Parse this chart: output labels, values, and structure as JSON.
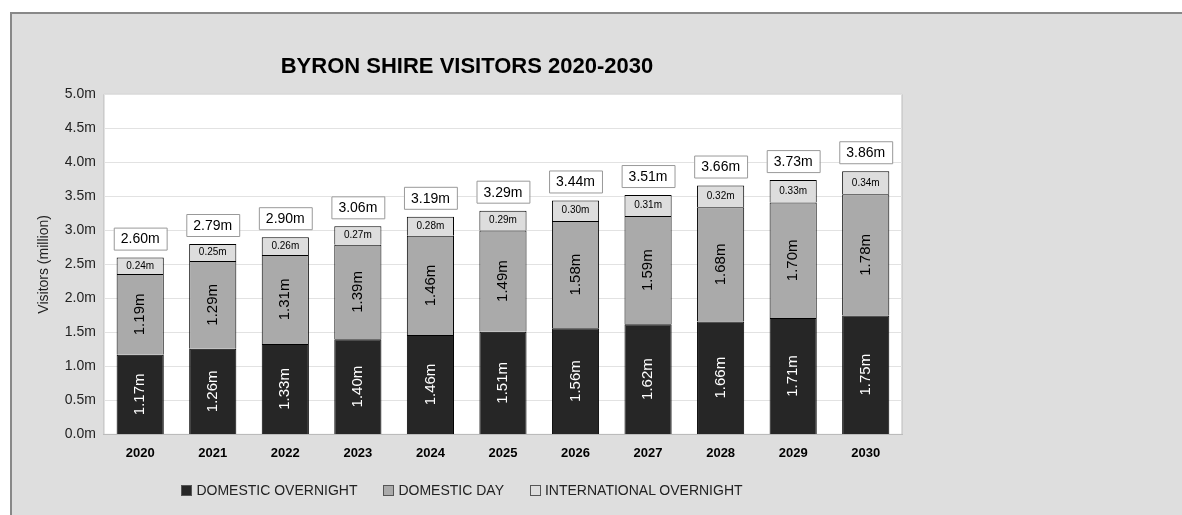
{
  "chart_data": {
    "type": "bar",
    "title": "BYRON SHIRE VISITORS 2020-2030",
    "ylabel": "Visitors (million)",
    "categories": [
      "2020",
      "2021",
      "2022",
      "2023",
      "2024",
      "2025",
      "2026",
      "2027",
      "2028",
      "2029",
      "2030"
    ],
    "stacked": true,
    "ylim": [
      0,
      5
    ],
    "yticks": [
      {
        "value": 0,
        "label": "0.0m"
      },
      {
        "value": 0.5,
        "label": "0.5m"
      },
      {
        "value": 1,
        "label": "1.0m"
      },
      {
        "value": 1.5,
        "label": "1.5m"
      },
      {
        "value": 2,
        "label": "2.0m"
      },
      {
        "value": 2.5,
        "label": "2.5m"
      },
      {
        "value": 3,
        "label": "3.0m"
      },
      {
        "value": 3.5,
        "label": "3.5m"
      },
      {
        "value": 4,
        "label": "4.0m"
      },
      {
        "value": 4.5,
        "label": "4.5m"
      },
      {
        "value": 5,
        "label": "5.0m"
      }
    ],
    "grid": "y",
    "legend": "bottom",
    "series": [
      {
        "name": "DOMESTIC OVERNIGHT",
        "color": "#262626",
        "values": [
          1.17,
          1.26,
          1.33,
          1.4,
          1.46,
          1.51,
          1.56,
          1.62,
          1.66,
          1.71,
          1.75
        ],
        "value_labels": [
          "1.17m",
          "1.26m",
          "1.33m",
          "1.40m",
          "1.46m",
          "1.51m",
          "1.56m",
          "1.62m",
          "1.66m",
          "1.71m",
          "1.75m"
        ]
      },
      {
        "name": "DOMESTIC DAY",
        "color": "#aaaaaa",
        "values": [
          1.19,
          1.29,
          1.31,
          1.39,
          1.46,
          1.49,
          1.58,
          1.59,
          1.68,
          1.7,
          1.78
        ],
        "value_labels": [
          "1.19m",
          "1.29m",
          "1.31m",
          "1.39m",
          "1.46m",
          "1.49m",
          "1.58m",
          "1.59m",
          "1.68m",
          "1.70m",
          "1.78m"
        ]
      },
      {
        "name": "INTERNATIONAL OVERNIGHT",
        "color": "#dddddd",
        "values": [
          0.24,
          0.25,
          0.26,
          0.27,
          0.28,
          0.29,
          0.3,
          0.31,
          0.32,
          0.33,
          0.34
        ],
        "value_labels": [
          "0.24m",
          "0.25m",
          "0.26m",
          "0.27m",
          "0.28m",
          "0.29m",
          "0.30m",
          "0.31m",
          "0.32m",
          "0.33m",
          "0.34m"
        ]
      }
    ],
    "totals": [
      "2.60m",
      "2.79m",
      "2.90m",
      "3.06m",
      "3.19m",
      "3.29m",
      "3.44m",
      "3.51m",
      "3.66m",
      "3.73m",
      "3.86m"
    ]
  }
}
